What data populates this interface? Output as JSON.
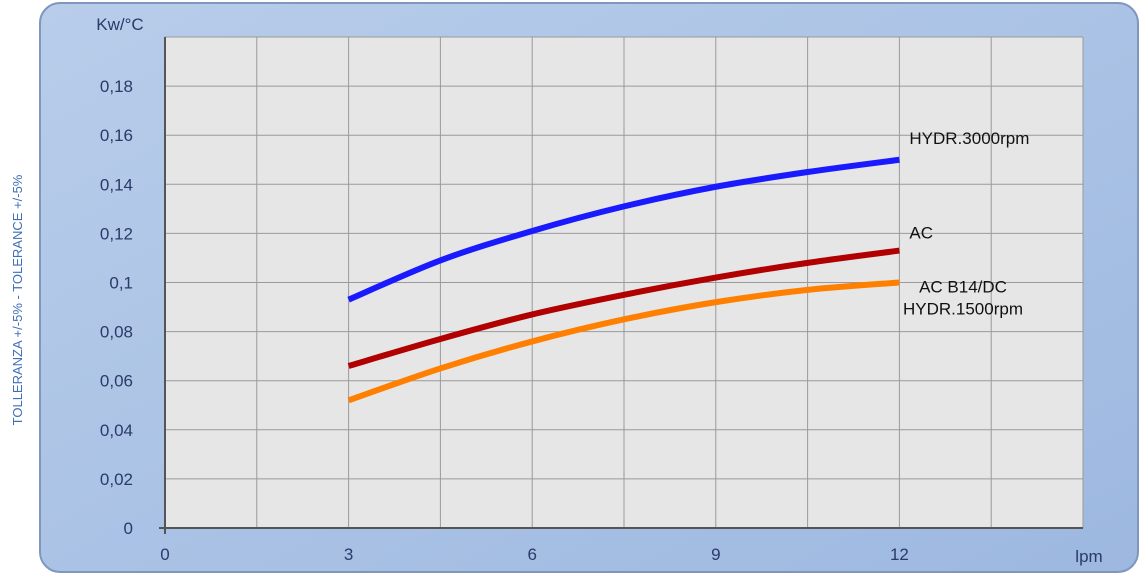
{
  "side_note": "TOLLERANZA +/-5% - TOLERANCE +/-5%",
  "colors": {
    "background_panel": "#a9c3e6",
    "plot_area": "#e6e6e6",
    "grid": "#9a9a9a",
    "side_note": "#3f6fb6"
  },
  "chart_data": {
    "type": "line",
    "y_unit": "Kw/°C",
    "x_unit": "lpm",
    "xlim": [
      0,
      15
    ],
    "ylim": [
      0,
      0.2
    ],
    "x_ticks": [
      {
        "value": 0,
        "label": "0"
      },
      {
        "value": 3,
        "label": "3"
      },
      {
        "value": 6,
        "label": "6"
      },
      {
        "value": 9,
        "label": "9"
      },
      {
        "value": 12,
        "label": "12"
      }
    ],
    "y_ticks": [
      {
        "value": 0,
        "label": "0"
      },
      {
        "value": 0.02,
        "label": "0,02"
      },
      {
        "value": 0.04,
        "label": "0,04"
      },
      {
        "value": 0.06,
        "label": "0,06"
      },
      {
        "value": 0.08,
        "label": "0,08"
      },
      {
        "value": 0.1,
        "label": "0,1"
      },
      {
        "value": 0.12,
        "label": "0,12"
      },
      {
        "value": 0.14,
        "label": "0,14"
      },
      {
        "value": 0.16,
        "label": "0,16"
      },
      {
        "value": 0.18,
        "label": "0,18"
      }
    ],
    "grid": true,
    "series": [
      {
        "labels": [
          "HYDR.3000rpm"
        ],
        "color": "#1a1aff",
        "x": [
          3,
          4.5,
          6,
          7.5,
          9,
          10.5,
          12
        ],
        "y": [
          0.093,
          0.109,
          0.121,
          0.131,
          0.139,
          0.145,
          0.15
        ]
      },
      {
        "labels": [
          "AC"
        ],
        "color": "#b00000",
        "x": [
          3,
          4.5,
          6,
          7.5,
          9,
          10.5,
          12
        ],
        "y": [
          0.066,
          0.077,
          0.087,
          0.095,
          0.102,
          0.108,
          0.113
        ]
      },
      {
        "labels": [
          "AC B14/DC",
          "HYDR.1500rpm"
        ],
        "color": "#ff8000",
        "x": [
          3,
          4.5,
          6,
          7.5,
          9,
          10.5,
          12
        ],
        "y": [
          0.052,
          0.065,
          0.076,
          0.085,
          0.092,
          0.097,
          0.1
        ]
      }
    ]
  }
}
